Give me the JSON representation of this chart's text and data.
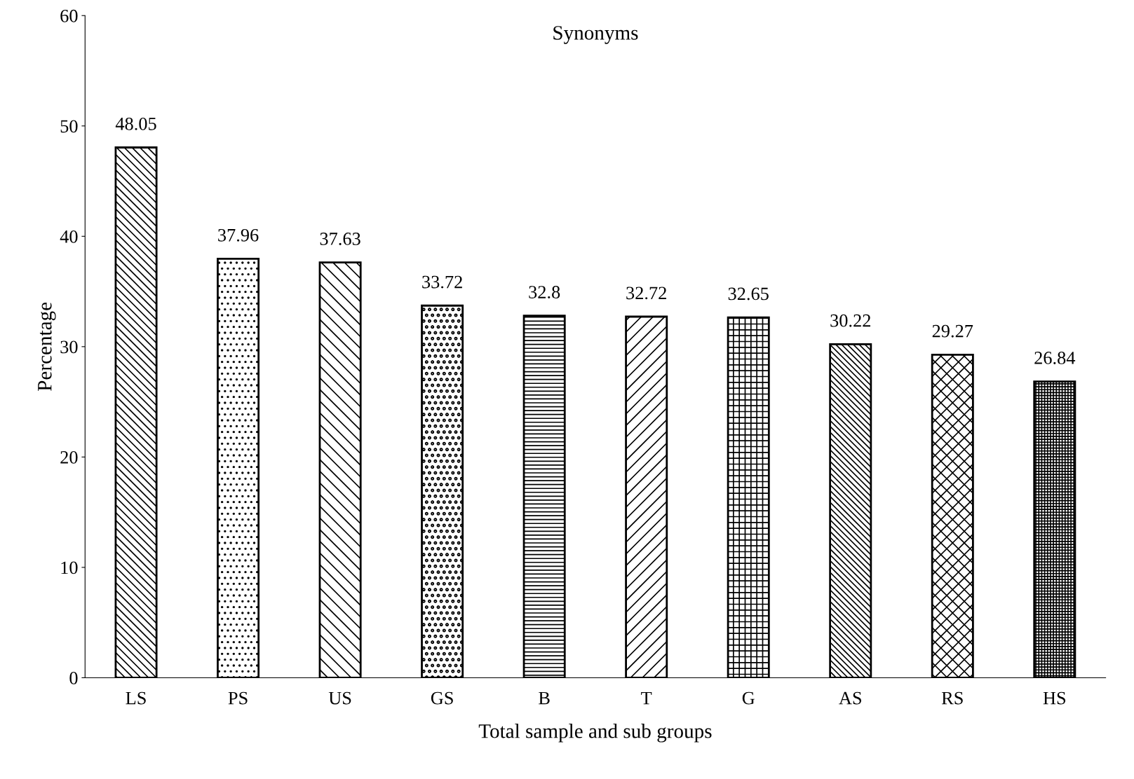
{
  "chart_data": {
    "type": "bar",
    "title": "Synonyms",
    "xlabel": "Total sample and sub groups",
    "ylabel": "Percentage",
    "categories": [
      "LS",
      "PS",
      "US",
      "GS",
      "B",
      "T",
      "G",
      "AS",
      "RS",
      "HS"
    ],
    "values": [
      48.05,
      37.96,
      37.63,
      33.72,
      32.8,
      32.72,
      32.65,
      30.22,
      29.27,
      26.84
    ],
    "color": "#000000",
    "ylim": [
      0,
      60
    ],
    "yticks": [
      0,
      10,
      20,
      30,
      40,
      50,
      60
    ],
    "data_labels": true,
    "grid": false,
    "legend": false
  }
}
